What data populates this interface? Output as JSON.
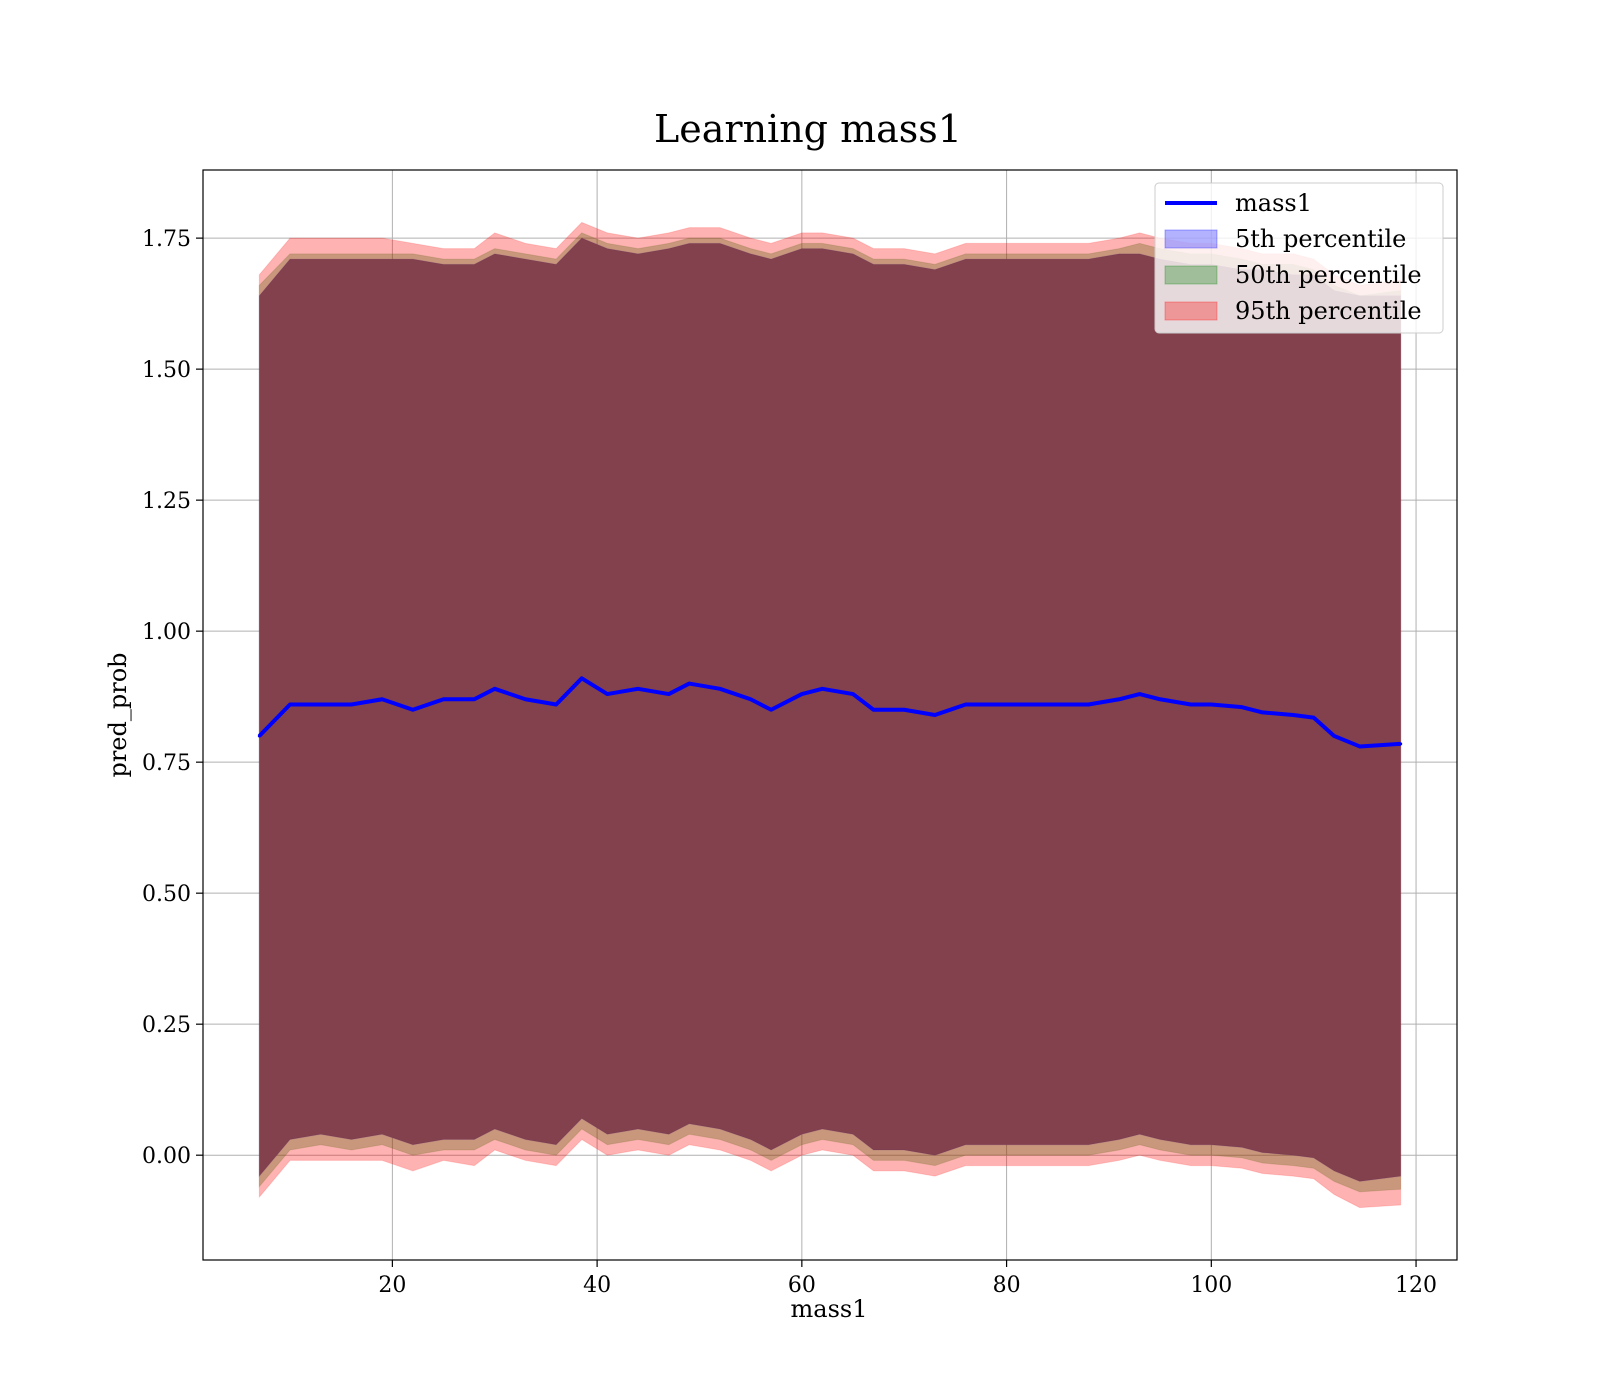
{
  "chart_data": {
    "type": "area",
    "title": "Learning mass1",
    "xlabel": "mass1",
    "ylabel": "pred_prob",
    "xlim": [
      1.5,
      124
    ],
    "ylim": [
      -0.2,
      1.88
    ],
    "xticks": [
      20,
      40,
      60,
      80,
      100,
      120
    ],
    "xtick_labels": [
      "20",
      "40",
      "60",
      "80",
      "100",
      "120"
    ],
    "yticks": [
      0.0,
      0.25,
      0.5,
      0.75,
      1.0,
      1.25,
      1.5,
      1.75
    ],
    "ytick_labels": [
      "0.00",
      "0.25",
      "0.50",
      "0.75",
      "1.00",
      "1.25",
      "1.50",
      "1.75"
    ],
    "grid": true,
    "legend_position": "top-right",
    "colors": {
      "line": "#0000ff",
      "p5": "#0000ff",
      "p50": "#008000",
      "p95": "#ff0000",
      "overlap_fill": "#a07078",
      "axes": "#000000"
    },
    "legend": [
      {
        "label": "mass1",
        "kind": "line",
        "color": "#0000ff"
      },
      {
        "label": "5th percentile",
        "kind": "patch",
        "color": "#0000ff"
      },
      {
        "label": "50th percentile",
        "kind": "patch",
        "color": "#008000"
      },
      {
        "label": "95th percentile",
        "kind": "patch",
        "color": "#ff0000"
      }
    ],
    "x": [
      7,
      10,
      13,
      16,
      19,
      22,
      25,
      28,
      30,
      33,
      36,
      38.5,
      41,
      44,
      47,
      49,
      52,
      55,
      57,
      60,
      62,
      65,
      67,
      70,
      73,
      76,
      80,
      84,
      88,
      91,
      93,
      95,
      98,
      100,
      103,
      105,
      108,
      110,
      112,
      114.5,
      118.5
    ],
    "series": [
      {
        "name": "mass1",
        "role": "line",
        "values": [
          0.8,
          0.86,
          0.86,
          0.86,
          0.87,
          0.85,
          0.87,
          0.87,
          0.89,
          0.87,
          0.86,
          0.91,
          0.88,
          0.89,
          0.88,
          0.9,
          0.89,
          0.87,
          0.85,
          0.88,
          0.89,
          0.88,
          0.85,
          0.85,
          0.84,
          0.86,
          0.86,
          0.86,
          0.86,
          0.87,
          0.88,
          0.87,
          0.86,
          0.86,
          0.855,
          0.845,
          0.84,
          0.835,
          0.8,
          0.78,
          0.785
        ]
      },
      {
        "name": "5th percentile",
        "role": "band",
        "upper": [
          1.64,
          1.71,
          1.71,
          1.71,
          1.71,
          1.71,
          1.7,
          1.7,
          1.72,
          1.71,
          1.7,
          1.75,
          1.73,
          1.72,
          1.73,
          1.74,
          1.74,
          1.72,
          1.71,
          1.73,
          1.73,
          1.72,
          1.7,
          1.7,
          1.69,
          1.71,
          1.71,
          1.71,
          1.71,
          1.72,
          1.72,
          1.71,
          1.7,
          1.7,
          1.69,
          1.69,
          1.68,
          1.68,
          1.65,
          1.64,
          1.64
        ],
        "lower": [
          -0.04,
          0.03,
          0.04,
          0.03,
          0.04,
          0.02,
          0.03,
          0.03,
          0.05,
          0.03,
          0.02,
          0.07,
          0.04,
          0.05,
          0.04,
          0.06,
          0.05,
          0.03,
          0.01,
          0.04,
          0.05,
          0.04,
          0.01,
          0.01,
          0.0,
          0.02,
          0.02,
          0.02,
          0.02,
          0.03,
          0.04,
          0.03,
          0.02,
          0.02,
          0.015,
          0.005,
          0.0,
          -0.005,
          -0.03,
          -0.05,
          -0.04
        ]
      },
      {
        "name": "50th percentile",
        "role": "band",
        "upper": [
          1.66,
          1.72,
          1.72,
          1.72,
          1.72,
          1.72,
          1.71,
          1.71,
          1.73,
          1.72,
          1.71,
          1.76,
          1.74,
          1.73,
          1.74,
          1.75,
          1.75,
          1.73,
          1.72,
          1.74,
          1.74,
          1.73,
          1.71,
          1.71,
          1.7,
          1.72,
          1.72,
          1.72,
          1.72,
          1.73,
          1.74,
          1.73,
          1.72,
          1.72,
          1.71,
          1.7,
          1.7,
          1.69,
          1.66,
          1.64,
          1.65
        ],
        "lower": [
          -0.06,
          0.01,
          0.02,
          0.01,
          0.02,
          0.0,
          0.01,
          0.01,
          0.03,
          0.01,
          0.0,
          0.05,
          0.02,
          0.03,
          0.02,
          0.04,
          0.03,
          0.01,
          -0.01,
          0.02,
          0.03,
          0.02,
          -0.01,
          -0.01,
          -0.02,
          0.0,
          0.0,
          0.0,
          0.0,
          0.01,
          0.02,
          0.01,
          0.0,
          0.0,
          -0.005,
          -0.015,
          -0.02,
          -0.025,
          -0.05,
          -0.07,
          -0.065
        ]
      },
      {
        "name": "95th percentile",
        "role": "band",
        "upper": [
          1.68,
          1.75,
          1.75,
          1.75,
          1.75,
          1.74,
          1.73,
          1.73,
          1.76,
          1.74,
          1.73,
          1.78,
          1.76,
          1.75,
          1.76,
          1.77,
          1.77,
          1.75,
          1.74,
          1.76,
          1.76,
          1.75,
          1.73,
          1.73,
          1.72,
          1.74,
          1.74,
          1.74,
          1.74,
          1.75,
          1.76,
          1.75,
          1.74,
          1.74,
          1.73,
          1.72,
          1.72,
          1.71,
          1.68,
          1.66,
          1.67
        ],
        "lower": [
          -0.08,
          -0.01,
          -0.01,
          -0.01,
          -0.01,
          -0.03,
          -0.01,
          -0.02,
          0.01,
          -0.01,
          -0.02,
          0.03,
          0.0,
          0.01,
          0.0,
          0.02,
          0.01,
          -0.01,
          -0.03,
          0.0,
          0.01,
          0.0,
          -0.03,
          -0.03,
          -0.04,
          -0.02,
          -0.02,
          -0.02,
          -0.02,
          -0.01,
          0.0,
          -0.01,
          -0.02,
          -0.02,
          -0.025,
          -0.035,
          -0.04,
          -0.045,
          -0.075,
          -0.1,
          -0.095
        ]
      }
    ]
  }
}
